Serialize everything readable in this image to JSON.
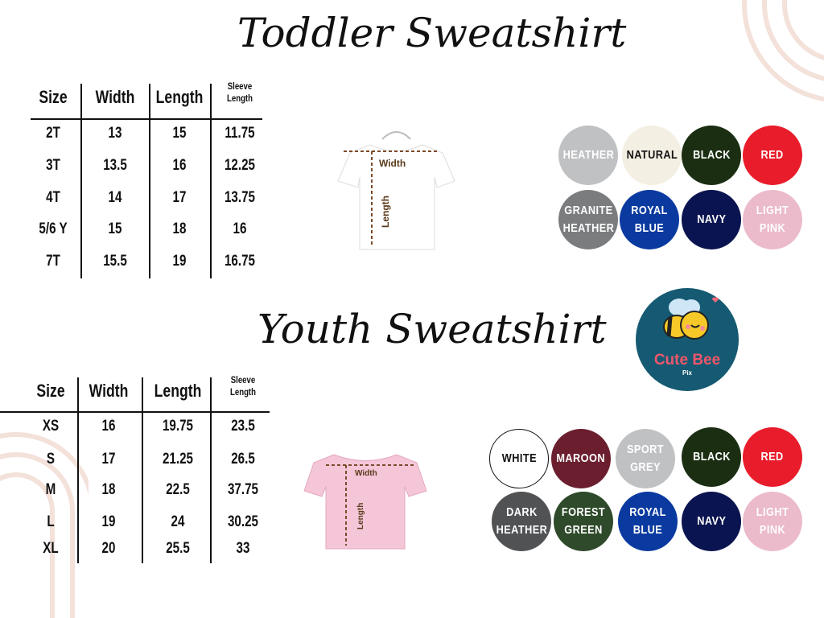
{
  "toddler": {
    "title": "Toddler Sweatshirt",
    "headers": [
      "Size",
      "Width",
      "Length",
      "Sleeve Length"
    ],
    "rows": [
      [
        "2T",
        "13",
        "15",
        "11.75"
      ],
      [
        "3T",
        "13.5",
        "16",
        "12.25"
      ],
      [
        "4T",
        "14",
        "17",
        "13.75"
      ],
      [
        "5/6 Y",
        "15",
        "18",
        "16"
      ],
      [
        "7T",
        "15.5",
        "19",
        "16.75"
      ]
    ],
    "shirt": {
      "color": "#ffffff",
      "width_label": "Width",
      "length_label": "Length"
    },
    "colors": [
      {
        "name": "HEATHER",
        "bg": "#c0c1c3",
        "fg": "#ffffff"
      },
      {
        "name": "NATURAL",
        "bg": "#f4efe3",
        "fg": "#111111"
      },
      {
        "name": "BLACK",
        "bg": "#1b2e12",
        "fg": "#ffffff"
      },
      {
        "name": "RED",
        "bg": "#e81c2a",
        "fg": "#ffffff"
      },
      {
        "name": "GRANITE HEATHER",
        "bg": "#7a7c7e",
        "fg": "#ffffff"
      },
      {
        "name": "ROYAL BLUE",
        "bg": "#0a3aa0",
        "fg": "#ffffff"
      },
      {
        "name": "NAVY",
        "bg": "#0a1450",
        "fg": "#ffffff"
      },
      {
        "name": "LIGHT PINK",
        "bg": "#ebbacb",
        "fg": "#ffffff"
      }
    ]
  },
  "youth": {
    "title": "Youth Sweatshirt",
    "headers": [
      "Size",
      "Width",
      "Length",
      "Sleeve Length"
    ],
    "rows": [
      [
        "XS",
        "16",
        "19.75",
        "23.5"
      ],
      [
        "S",
        "17",
        "21.25",
        "26.5"
      ],
      [
        "M",
        "18",
        "22.5",
        "37.75"
      ],
      [
        "L",
        "19",
        "24",
        "30.25"
      ],
      [
        "XL",
        "20",
        "25.5",
        "33"
      ]
    ],
    "shirt": {
      "color": "#f4c6d8",
      "width_label": "Width",
      "length_label": "Length"
    },
    "colors": [
      {
        "name": "WHITE",
        "bg": "#ffffff",
        "fg": "#111111"
      },
      {
        "name": "MAROON",
        "bg": "#6b1f2e",
        "fg": "#ffffff"
      },
      {
        "name": "SPORT GREY",
        "bg": "#c0c1c3",
        "fg": "#ffffff"
      },
      {
        "name": "BLACK",
        "bg": "#1b2e12",
        "fg": "#ffffff"
      },
      {
        "name": "RED",
        "bg": "#e81c2a",
        "fg": "#ffffff"
      },
      {
        "name": "DARK HEATHER",
        "bg": "#505254",
        "fg": "#ffffff"
      },
      {
        "name": "FOREST GREEN",
        "bg": "#2e4a2a",
        "fg": "#ffffff"
      },
      {
        "name": "ROYAL BLUE",
        "bg": "#0a3aa0",
        "fg": "#ffffff"
      },
      {
        "name": "NAVY",
        "bg": "#0a1450",
        "fg": "#ffffff"
      },
      {
        "name": "LIGHT PINK",
        "bg": "#ebbacb",
        "fg": "#ffffff"
      }
    ]
  },
  "logo": {
    "name": "Cute Bee",
    "sub": "Pix"
  }
}
